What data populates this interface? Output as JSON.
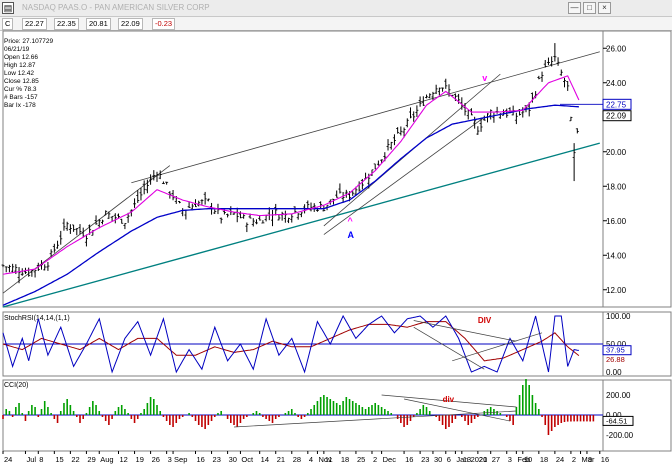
{
  "window": {
    "title": "NASDAQ PAAS.O - PAN AMERICAN SILVER CORP",
    "sys_icon": "chart-window-icon",
    "buttons": [
      "—",
      "□",
      "×"
    ]
  },
  "ohlc_bar": {
    "mode": "C",
    "open": "22.27",
    "high": "22.35",
    "low": "20.81",
    "close": "22.09",
    "change": "-0.23"
  },
  "info_box": {
    "lines": [
      "Price: 27.107729",
      "06/21/19",
      "Open 12.66",
      "High 12.87",
      "Low 12.42",
      "Close 12.85",
      "Cur % 78.3",
      "# Bars -157",
      "Bar Ix -178"
    ]
  },
  "price_panel": {
    "y_ticks": [
      "26.00",
      "24.00",
      "22.00",
      "20.00",
      "18.00",
      "16.00",
      "14.00",
      "12.00"
    ],
    "y_tick_values": [
      26,
      24,
      22,
      20,
      18,
      16,
      14,
      12
    ],
    "ylim": [
      11,
      27
    ],
    "label_upper": "22.75",
    "label_upper_value": 22.75,
    "label_last": "22.09",
    "label_last_value": 22.09,
    "annotations": [
      {
        "text": "v",
        "color": "#ff00ff",
        "bar": 150,
        "value": 24.1
      },
      {
        "text": "^",
        "color": "#ff00ff",
        "bar": 108,
        "value": 15.8
      },
      {
        "text": "A",
        "color": "#0000ff",
        "bar": 108,
        "value": 15.0
      }
    ]
  },
  "rsi_panel": {
    "title": "StochRSI(14,14,(1,1)",
    "y_ticks": [
      "100.00",
      "50.00",
      "0.00"
    ],
    "y_tick_values": [
      100,
      50,
      0
    ],
    "label_blue": "37.95",
    "label_red": "26.88",
    "annotation": "DIV",
    "annotation_color": "#d00000"
  },
  "cci_panel": {
    "title": "CCI(20)",
    "y_ticks": [
      "200.00",
      "0.00",
      "-200.00"
    ],
    "y_tick_values": [
      200,
      0,
      -200
    ],
    "label_last": "-64.51",
    "annotation": "div",
    "annotation_color": "#d00000"
  },
  "x_axis": {
    "ticks": [
      {
        "label": "24",
        "bar": 0
      },
      {
        "label": "Jul",
        "bar": 7
      },
      {
        "label": "8",
        "bar": 11
      },
      {
        "label": "15",
        "bar": 16
      },
      {
        "label": "22",
        "bar": 21
      },
      {
        "label": "29",
        "bar": 26
      },
      {
        "label": "Aug",
        "bar": 30
      },
      {
        "label": "12",
        "bar": 36
      },
      {
        "label": "19",
        "bar": 41
      },
      {
        "label": "26",
        "bar": 46
      },
      {
        "label": "3",
        "bar": 51
      },
      {
        "label": "Sep",
        "bar": 53
      },
      {
        "label": "16",
        "bar": 60
      },
      {
        "label": "23",
        "bar": 65
      },
      {
        "label": "30",
        "bar": 70
      },
      {
        "label": "Oct",
        "bar": 74
      },
      {
        "label": "14",
        "bar": 80
      },
      {
        "label": "21",
        "bar": 85
      },
      {
        "label": "28",
        "bar": 90
      },
      {
        "label": "4",
        "bar": 95
      },
      {
        "label": "Nov",
        "bar": 98
      },
      {
        "label": "11",
        "bar": 100
      },
      {
        "label": "18",
        "bar": 105
      },
      {
        "label": "25",
        "bar": 110
      },
      {
        "label": "2",
        "bar": 115
      },
      {
        "label": "Dec",
        "bar": 118
      },
      {
        "label": "16",
        "bar": 125
      },
      {
        "label": "23",
        "bar": 130
      },
      {
        "label": "30",
        "bar": 134
      },
      {
        "label": "6",
        "bar": 138
      },
      {
        "label": "Jan 2020",
        "bar": 141
      },
      {
        "label": "13",
        "bar": 143
      },
      {
        "label": "21",
        "bar": 148
      },
      {
        "label": "27",
        "bar": 152
      },
      {
        "label": "3",
        "bar": 157
      },
      {
        "label": "Feb",
        "bar": 160
      },
      {
        "label": "10",
        "bar": 162
      },
      {
        "label": "18",
        "bar": 167
      },
      {
        "label": "24",
        "bar": 172
      },
      {
        "label": "2",
        "bar": 177
      },
      {
        "label": "Mar",
        "bar": 180
      },
      {
        "label": "9",
        "bar": 182
      },
      {
        "label": "16",
        "bar": 186
      }
    ]
  },
  "chart_data": {
    "type": "line",
    "bar_count": 180,
    "price_knots": [
      [
        0,
        13.4
      ],
      [
        8,
        13.0
      ],
      [
        14,
        13.6
      ],
      [
        20,
        15.8
      ],
      [
        26,
        15.2
      ],
      [
        32,
        16.4
      ],
      [
        38,
        16.0
      ],
      [
        44,
        17.8
      ],
      [
        48,
        18.9
      ],
      [
        52,
        17.7
      ],
      [
        56,
        16.6
      ],
      [
        60,
        17.0
      ],
      [
        64,
        17.1
      ],
      [
        68,
        16.2
      ],
      [
        72,
        16.4
      ],
      [
        76,
        16.0
      ],
      [
        80,
        16.0
      ],
      [
        84,
        16.5
      ],
      [
        88,
        16.3
      ],
      [
        92,
        16.6
      ],
      [
        96,
        16.8
      ],
      [
        100,
        16.8
      ],
      [
        104,
        17.4
      ],
      [
        108,
        17.5
      ],
      [
        112,
        18.2
      ],
      [
        116,
        19.1
      ],
      [
        120,
        20.2
      ],
      [
        124,
        21.1
      ],
      [
        128,
        22.1
      ],
      [
        132,
        23.2
      ],
      [
        136,
        23.9
      ],
      [
        140,
        23.4
      ],
      [
        144,
        22.4
      ],
      [
        148,
        21.4
      ],
      [
        152,
        22.3
      ],
      [
        156,
        22.3
      ],
      [
        160,
        22.1
      ],
      [
        164,
        22.5
      ],
      [
        168,
        24.6
      ],
      [
        172,
        25.4
      ],
      [
        176,
        23.7
      ],
      [
        178,
        19.8
      ],
      [
        180,
        22.1
      ]
    ],
    "ma_fast_knots": [
      [
        0,
        12.9
      ],
      [
        10,
        13.2
      ],
      [
        20,
        14.5
      ],
      [
        30,
        15.6
      ],
      [
        40,
        16.5
      ],
      [
        48,
        17.8
      ],
      [
        56,
        17.2
      ],
      [
        64,
        16.8
      ],
      [
        72,
        16.5
      ],
      [
        80,
        16.3
      ],
      [
        90,
        16.4
      ],
      [
        100,
        16.9
      ],
      [
        108,
        17.6
      ],
      [
        116,
        18.9
      ],
      [
        124,
        20.6
      ],
      [
        132,
        22.7
      ],
      [
        138,
        23.5
      ],
      [
        146,
        22.3
      ],
      [
        154,
        22.3
      ],
      [
        162,
        22.4
      ],
      [
        170,
        24.0
      ],
      [
        176,
        24.4
      ],
      [
        180,
        22.8
      ]
    ],
    "ma_slow_knots": [
      [
        0,
        11.1
      ],
      [
        10,
        11.9
      ],
      [
        20,
        12.9
      ],
      [
        30,
        14.2
      ],
      [
        40,
        15.4
      ],
      [
        48,
        16.2
      ],
      [
        56,
        16.6
      ],
      [
        64,
        16.7
      ],
      [
        72,
        16.7
      ],
      [
        80,
        16.7
      ],
      [
        90,
        16.7
      ],
      [
        100,
        16.7
      ],
      [
        108,
        17.2
      ],
      [
        116,
        18.3
      ],
      [
        124,
        19.6
      ],
      [
        132,
        20.8
      ],
      [
        140,
        21.6
      ],
      [
        148,
        21.9
      ],
      [
        156,
        22.2
      ],
      [
        164,
        22.5
      ],
      [
        172,
        22.7
      ],
      [
        180,
        22.6
      ]
    ],
    "trendlines": [
      {
        "name": "upper-channel",
        "color": "#404040",
        "from": [
          40,
          18.2
        ],
        "to": [
          186,
          25.8
        ]
      },
      {
        "name": "lower-support",
        "color": "#008080",
        "from": [
          0,
          11.0
        ],
        "to": [
          186,
          20.5
        ]
      },
      {
        "name": "left-channel",
        "color": "#404040",
        "from": [
          0,
          11.8
        ],
        "to": [
          52,
          19.2
        ]
      },
      {
        "name": "mid-channel",
        "color": "#404040",
        "from": [
          100,
          15.7
        ],
        "to": [
          155,
          24.5
        ]
      },
      {
        "name": "short-channel",
        "color": "#404040",
        "from": [
          100,
          15.2
        ],
        "to": [
          150,
          22.0
        ]
      }
    ],
    "rsi_blue_knots": [
      [
        0,
        70
      ],
      [
        3,
        10
      ],
      [
        6,
        60
      ],
      [
        8,
        20
      ],
      [
        11,
        95
      ],
      [
        14,
        30
      ],
      [
        18,
        80
      ],
      [
        22,
        10
      ],
      [
        26,
        50
      ],
      [
        30,
        95
      ],
      [
        34,
        0
      ],
      [
        38,
        60
      ],
      [
        42,
        90
      ],
      [
        46,
        30
      ],
      [
        50,
        95
      ],
      [
        54,
        0
      ],
      [
        58,
        40
      ],
      [
        62,
        5
      ],
      [
        66,
        80
      ],
      [
        70,
        20
      ],
      [
        74,
        50
      ],
      [
        78,
        5
      ],
      [
        82,
        95
      ],
      [
        86,
        30
      ],
      [
        90,
        60
      ],
      [
        94,
        0
      ],
      [
        98,
        90
      ],
      [
        102,
        50
      ],
      [
        106,
        100
      ],
      [
        110,
        60
      ],
      [
        114,
        85
      ],
      [
        118,
        100
      ],
      [
        122,
        70
      ],
      [
        126,
        95
      ],
      [
        130,
        100
      ],
      [
        134,
        80
      ],
      [
        138,
        100
      ],
      [
        142,
        60
      ],
      [
        146,
        0
      ],
      [
        150,
        10
      ],
      [
        154,
        0
      ],
      [
        158,
        60
      ],
      [
        162,
        20
      ],
      [
        166,
        100
      ],
      [
        170,
        0
      ],
      [
        172,
        100
      ],
      [
        174,
        100
      ],
      [
        176,
        10
      ],
      [
        178,
        40
      ],
      [
        180,
        38
      ]
    ],
    "rsi_red_knots": [
      [
        0,
        50
      ],
      [
        6,
        40
      ],
      [
        12,
        60
      ],
      [
        18,
        50
      ],
      [
        24,
        40
      ],
      [
        30,
        60
      ],
      [
        36,
        40
      ],
      [
        42,
        60
      ],
      [
        48,
        60
      ],
      [
        54,
        30
      ],
      [
        60,
        30
      ],
      [
        66,
        45
      ],
      [
        72,
        35
      ],
      [
        78,
        40
      ],
      [
        84,
        55
      ],
      [
        90,
        45
      ],
      [
        96,
        45
      ],
      [
        102,
        60
      ],
      [
        108,
        75
      ],
      [
        114,
        85
      ],
      [
        120,
        85
      ],
      [
        126,
        80
      ],
      [
        132,
        90
      ],
      [
        138,
        90
      ],
      [
        144,
        60
      ],
      [
        150,
        20
      ],
      [
        156,
        25
      ],
      [
        162,
        40
      ],
      [
        168,
        55
      ],
      [
        172,
        70
      ],
      [
        176,
        45
      ],
      [
        180,
        27
      ]
    ],
    "cci_values": [
      -40,
      60,
      40,
      -20,
      80,
      120,
      20,
      -60,
      40,
      100,
      80,
      -20,
      60,
      140,
      80,
      20,
      -40,
      -80,
      40,
      120,
      160,
      100,
      40,
      -20,
      -80,
      -40,
      20,
      80,
      140,
      100,
      40,
      -20,
      -60,
      -100,
      -40,
      40,
      80,
      100,
      60,
      20,
      -40,
      -80,
      -40,
      20,
      60,
      120,
      180,
      160,
      100,
      40,
      -20,
      -60,
      -100,
      -120,
      -80,
      -40,
      -20,
      0,
      20,
      -20,
      -60,
      -100,
      -120,
      -140,
      -100,
      -60,
      -20,
      20,
      40,
      0,
      -40,
      -80,
      -100,
      -120,
      -80,
      -40,
      -20,
      0,
      20,
      40,
      20,
      -20,
      -40,
      -60,
      -80,
      -40,
      -20,
      0,
      20,
      40,
      60,
      20,
      -20,
      -40,
      -20,
      20,
      60,
      100,
      140,
      180,
      200,
      180,
      160,
      140,
      120,
      100,
      140,
      180,
      160,
      140,
      120,
      100,
      80,
      60,
      80,
      100,
      120,
      100,
      80,
      60,
      40,
      20,
      0,
      -40,
      -80,
      -120,
      -100,
      -60,
      -20,
      20,
      60,
      100,
      80,
      40,
      0,
      -20,
      -60,
      -100,
      -140,
      -120,
      -80,
      -40,
      0,
      -20,
      -60,
      -100,
      -80,
      -40,
      -20,
      0,
      40,
      60,
      80,
      60,
      40,
      20,
      0,
      -20,
      -60,
      -100,
      80,
      200,
      300,
      360,
      300,
      200,
      120,
      60,
      -20,
      -100,
      -200,
      -160,
      -120,
      -100,
      -80,
      -70,
      -66,
      -65,
      -64,
      -64,
      -64,
      -64,
      -64,
      -65,
      -64
    ]
  },
  "colors": {
    "ma_fast": "#e000e0",
    "ma_slow": "#0000c8",
    "rsi_blue": "#0000c0",
    "rsi_red": "#a00000",
    "cci_pos": "#00a000",
    "cci_neg": "#c00000",
    "trend_support": "#008080"
  }
}
